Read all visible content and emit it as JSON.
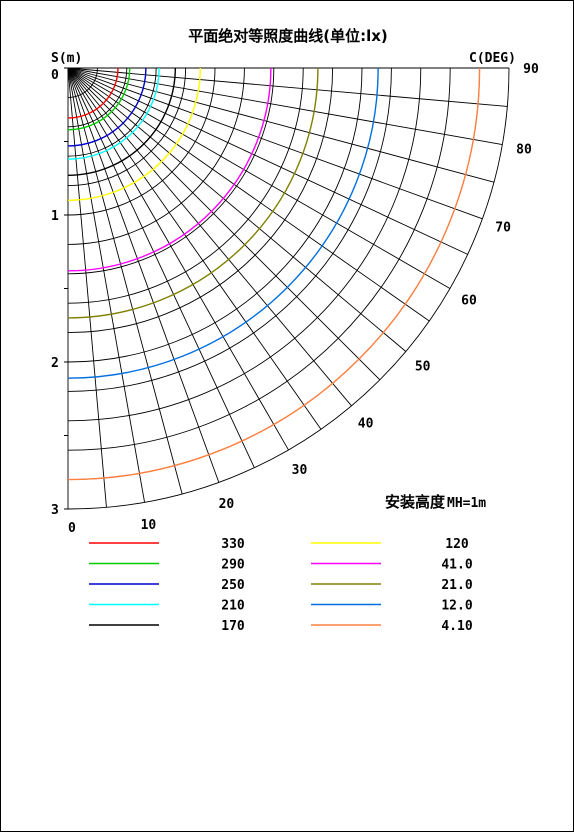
{
  "chart_data": {
    "type": "polar-isolux",
    "title": "平面绝对等照度曲线(单位:lx)",
    "radial_axis_label": "S(m)",
    "angular_axis_label": "C(DEG)",
    "radial_range": [
      0,
      3
    ],
    "radial_ticks": [
      {
        "value": 0,
        "label": "0"
      },
      {
        "value": 1,
        "label": "1"
      },
      {
        "value": 2,
        "label": "2"
      },
      {
        "value": 3,
        "label": "3"
      }
    ],
    "bottom_ticks": [
      {
        "value": 0,
        "label": "0"
      }
    ],
    "angle_range": [
      0,
      90
    ],
    "angle_ticks": [
      {
        "angle": 10,
        "label": "10"
      },
      {
        "angle": 20,
        "label": "20"
      },
      {
        "angle": 30,
        "label": "30"
      },
      {
        "angle": 40,
        "label": "40"
      },
      {
        "angle": 50,
        "label": "50"
      },
      {
        "angle": 60,
        "label": "60"
      },
      {
        "angle": 70,
        "label": "70"
      },
      {
        "angle": 80,
        "label": "80"
      },
      {
        "angle": 90,
        "label": "90"
      }
    ],
    "grid": true,
    "annotation_main": "安装高度",
    "annotation_sub": "MH=1m",
    "series": [
      {
        "name": "330",
        "radius": 0.34,
        "color": "#ff0000"
      },
      {
        "name": "290",
        "radius": 0.42,
        "color": "#00cc00"
      },
      {
        "name": "250",
        "radius": 0.53,
        "color": "#0000cc"
      },
      {
        "name": "210",
        "radius": 0.62,
        "color": "#00ffff"
      },
      {
        "name": "170",
        "radius": 0.73,
        "color": "#000000"
      },
      {
        "name": "120",
        "radius": 0.9,
        "color": "#ffff00"
      },
      {
        "name": "41.0",
        "radius": 1.38,
        "color": "#ff00ff"
      },
      {
        "name": "21.0",
        "radius": 1.7,
        "color": "#808000"
      },
      {
        "name": "12.0",
        "radius": 2.11,
        "color": "#0070e0"
      },
      {
        "name": "4.10",
        "radius": 2.8,
        "color": "#ff8040"
      }
    ]
  }
}
